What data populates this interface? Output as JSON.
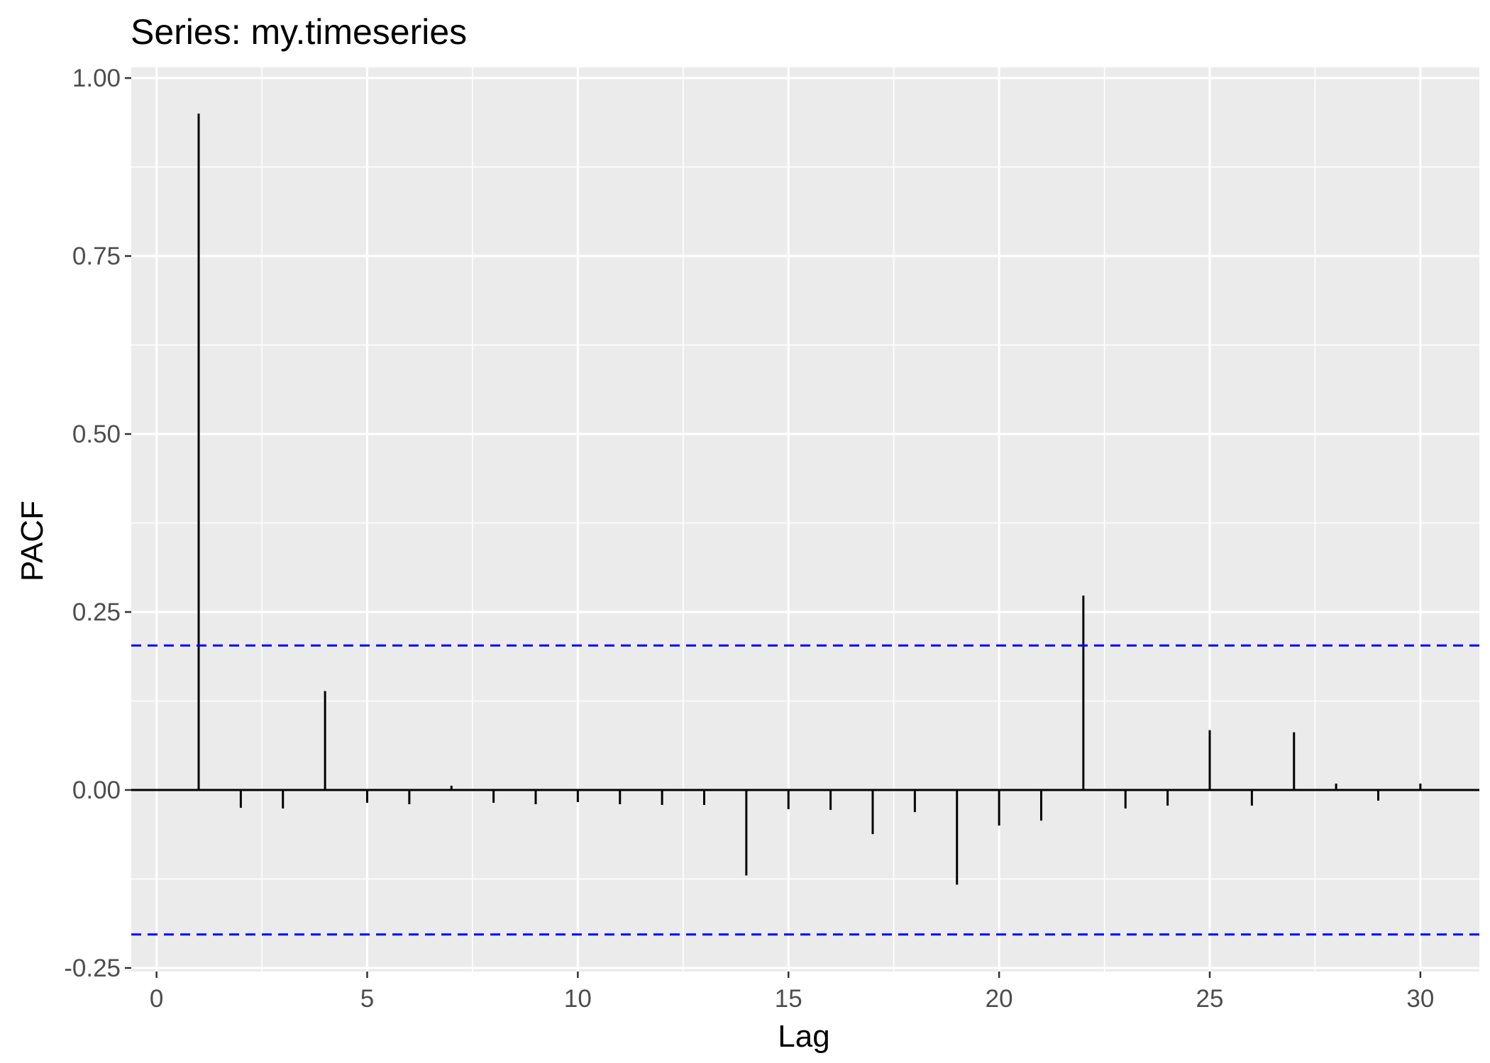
{
  "chart_data": {
    "type": "bar",
    "title": "Series: my.timeseries",
    "xlabel": "Lag",
    "ylabel": "PACF",
    "xlim": [
      -0.6,
      31.4
    ],
    "ylim": [
      -0.255,
      1.015
    ],
    "x_ticks": [
      0,
      5,
      10,
      15,
      20,
      25,
      30
    ],
    "x_tick_labels": [
      "0",
      "5",
      "10",
      "15",
      "20",
      "25",
      "30"
    ],
    "y_ticks": [
      -0.25,
      0,
      0.25,
      0.5,
      0.75,
      1.0
    ],
    "y_tick_labels": [
      "-0.25",
      "0.00",
      "0.25",
      "0.50",
      "0.75",
      "1.00"
    ],
    "grid": true,
    "confidence_band": [
      0.203,
      -0.203
    ],
    "lags": [
      1,
      2,
      3,
      4,
      5,
      6,
      7,
      8,
      9,
      10,
      11,
      12,
      13,
      14,
      15,
      16,
      17,
      18,
      19,
      20,
      21,
      22,
      23,
      24,
      25,
      26,
      27,
      28,
      29,
      30
    ],
    "values": [
      0.95,
      -0.025,
      -0.026,
      0.139,
      -0.018,
      -0.02,
      0.006,
      -0.018,
      -0.02,
      -0.017,
      -0.02,
      -0.021,
      -0.021,
      -0.12,
      -0.027,
      -0.028,
      -0.062,
      -0.031,
      -0.133,
      -0.05,
      -0.043,
      0.273,
      -0.026,
      -0.022,
      0.084,
      -0.022,
      0.081,
      0.009,
      -0.015,
      0.009
    ],
    "colors": {
      "panel": "#ebebeb",
      "grid": "#ffffff",
      "bar": "#000000",
      "confidence": "#0000ff",
      "tick_label": "#4d4d4d"
    }
  }
}
